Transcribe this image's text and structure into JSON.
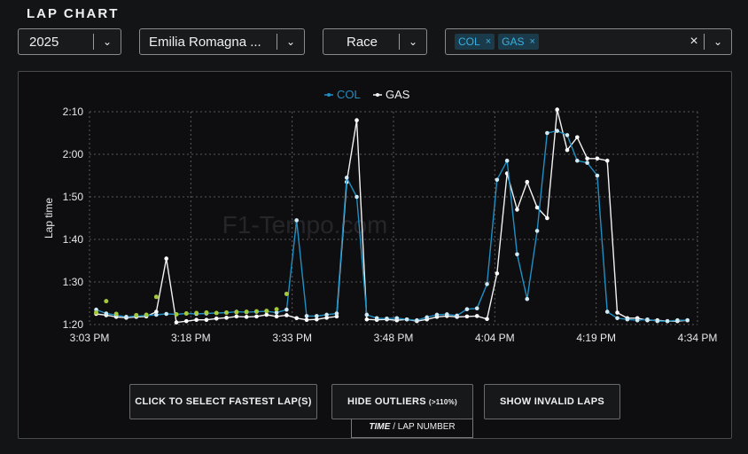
{
  "header": {
    "title": "LAP CHART"
  },
  "filters": {
    "year": "2025",
    "event": "Emilia Romagna ...",
    "session": "Race",
    "drivers": [
      {
        "label": "COL",
        "remove_icon": "×"
      },
      {
        "label": "GAS",
        "remove_icon": "×"
      }
    ],
    "clear_icon": "×",
    "chevron_icon": "⌄"
  },
  "colors": {
    "COL": "#1f8fc4",
    "GAS": "#f2f2f2",
    "invalid_lap": "#a4c93a",
    "background": "#0e0e10"
  },
  "watermark": "F1-Tempo.com",
  "buttons": {
    "x_axis_toggle_strong": "TIME",
    "x_axis_toggle_rest": "/ LAP NUMBER",
    "fastest_laps": "CLICK TO SELECT FASTEST LAP(S)",
    "hide_outliers": "HIDE OUTLIERS",
    "hide_outliers_suffix": "(>110%)",
    "show_invalid": "SHOW INVALID LAPS"
  },
  "chart_data": {
    "type": "line",
    "title": "",
    "xlabel": "",
    "ylabel": "Lap time",
    "y_ticks": [
      "1:20",
      "1:30",
      "1:40",
      "1:50",
      "2:00",
      "2:10"
    ],
    "y_range_seconds": [
      80,
      130
    ],
    "x_ticks": [
      "3:03 PM",
      "3:18 PM",
      "3:33 PM",
      "3:48 PM",
      "4:04 PM",
      "4:19 PM",
      "4:34 PM"
    ],
    "x_range_minutes_after_3pm": [
      3,
      94
    ],
    "grid": true,
    "legend_position": "top-center",
    "series": [
      {
        "name": "GAS",
        "points": [
          [
            4,
            82.5
          ],
          [
            5.5,
            82.2
          ],
          [
            7,
            81.8
          ],
          [
            8.5,
            81.6
          ],
          [
            10,
            81.8
          ],
          [
            11.5,
            81.9
          ],
          [
            13,
            83.0
          ],
          [
            14.5,
            95.5
          ],
          [
            16,
            80.5
          ],
          [
            17.5,
            80.8
          ],
          [
            19,
            81.1
          ],
          [
            20.5,
            81.1
          ],
          [
            22,
            81.4
          ],
          [
            23.5,
            81.6
          ],
          [
            25,
            81.9
          ],
          [
            26.5,
            81.8
          ],
          [
            28,
            81.9
          ],
          [
            29.5,
            82.3
          ],
          [
            31,
            81.9
          ],
          [
            32.5,
            82.2
          ],
          [
            34,
            81.5
          ],
          [
            35.5,
            81.1
          ],
          [
            37,
            81.2
          ],
          [
            38.5,
            81.6
          ],
          [
            40,
            81.9
          ],
          [
            41.5,
            113.5
          ],
          [
            43,
            128.0
          ],
          [
            44.5,
            81.2
          ],
          [
            46,
            81.1
          ],
          [
            47.5,
            81.2
          ],
          [
            49,
            81.0
          ],
          [
            50.5,
            81.2
          ],
          [
            52,
            80.8
          ],
          [
            53.5,
            81.2
          ],
          [
            55,
            81.8
          ],
          [
            56.5,
            82.0
          ],
          [
            58,
            81.8
          ],
          [
            59.5,
            81.9
          ],
          [
            61,
            82.0
          ],
          [
            62.5,
            81.3
          ],
          [
            64,
            92.0
          ],
          [
            65.5,
            115.5
          ],
          [
            67,
            107.0
          ],
          [
            68.5,
            113.5
          ],
          [
            70,
            107.5
          ],
          [
            71.5,
            105.0
          ],
          [
            73,
            130.5
          ],
          [
            74.5,
            121.0
          ],
          [
            76,
            124.0
          ],
          [
            77.5,
            119.0
          ],
          [
            79,
            119.0
          ],
          [
            80.5,
            118.5
          ],
          [
            82,
            82.8
          ],
          [
            83.5,
            81.5
          ],
          [
            85,
            81.5
          ],
          [
            86.5,
            81.0
          ],
          [
            88,
            81.0
          ],
          [
            89.5,
            80.8
          ],
          [
            91,
            80.8
          ],
          [
            92.5,
            81.0
          ]
        ]
      },
      {
        "name": "COL",
        "points": [
          [
            4,
            83.5
          ],
          [
            5.5,
            82.6
          ],
          [
            7,
            82.2
          ],
          [
            8.5,
            81.8
          ],
          [
            10,
            82.0
          ],
          [
            11.5,
            82.1
          ],
          [
            13,
            82.3
          ],
          [
            14.5,
            82.5
          ],
          [
            16,
            82.4
          ],
          [
            17.5,
            82.6
          ],
          [
            19,
            82.5
          ],
          [
            20.5,
            82.6
          ],
          [
            22,
            82.7
          ],
          [
            23.5,
            82.8
          ],
          [
            25,
            83.0
          ],
          [
            26.5,
            82.9
          ],
          [
            28,
            83.0
          ],
          [
            29.5,
            83.1
          ],
          [
            31,
            82.8
          ],
          [
            32.5,
            83.5
          ],
          [
            34,
            104.5
          ],
          [
            35.5,
            82.0
          ],
          [
            37,
            82.0
          ],
          [
            38.5,
            82.3
          ],
          [
            40,
            82.6
          ],
          [
            41.5,
            114.5
          ],
          [
            43,
            110.0
          ],
          [
            44.5,
            82.3
          ],
          [
            46,
            81.5
          ],
          [
            47.5,
            81.4
          ],
          [
            49,
            81.5
          ],
          [
            50.5,
            81.2
          ],
          [
            52,
            81.0
          ],
          [
            53.5,
            81.7
          ],
          [
            55,
            82.3
          ],
          [
            56.5,
            82.4
          ],
          [
            58,
            82.1
          ],
          [
            59.5,
            83.6
          ],
          [
            61,
            83.8
          ],
          [
            62.5,
            89.5
          ],
          [
            64,
            114.0
          ],
          [
            65.5,
            118.5
          ],
          [
            67,
            96.5
          ],
          [
            68.5,
            86.0
          ],
          [
            70,
            102.0
          ],
          [
            71.5,
            125.0
          ],
          [
            73,
            125.5
          ],
          [
            74.5,
            124.5
          ],
          [
            76,
            118.5
          ],
          [
            77.5,
            118.0
          ],
          [
            79,
            115.0
          ],
          [
            80.5,
            83.0
          ],
          [
            82,
            81.5
          ],
          [
            83.5,
            81.2
          ],
          [
            85,
            81.0
          ],
          [
            86.5,
            81.2
          ],
          [
            88,
            80.8
          ],
          [
            89.5,
            80.8
          ],
          [
            91,
            81.0
          ],
          [
            92.5,
            81.0
          ]
        ]
      }
    ],
    "invalid_laps": {
      "series": "GAS",
      "points": [
        [
          4,
          82.8
        ],
        [
          5.5,
          85.5
        ],
        [
          7,
          82.5
        ],
        [
          10,
          82.2
        ],
        [
          11.5,
          82.3
        ],
        [
          13,
          86.5
        ],
        [
          16,
          82.4
        ],
        [
          17.5,
          82.6
        ],
        [
          19,
          82.7
        ],
        [
          20.5,
          82.8
        ],
        [
          22,
          82.7
        ],
        [
          23.5,
          82.8
        ],
        [
          25,
          82.9
        ],
        [
          26.5,
          83.0
        ],
        [
          28,
          83.1
        ],
        [
          29.5,
          83.2
        ],
        [
          31,
          83.6
        ],
        [
          32.5,
          87.2
        ]
      ]
    }
  }
}
